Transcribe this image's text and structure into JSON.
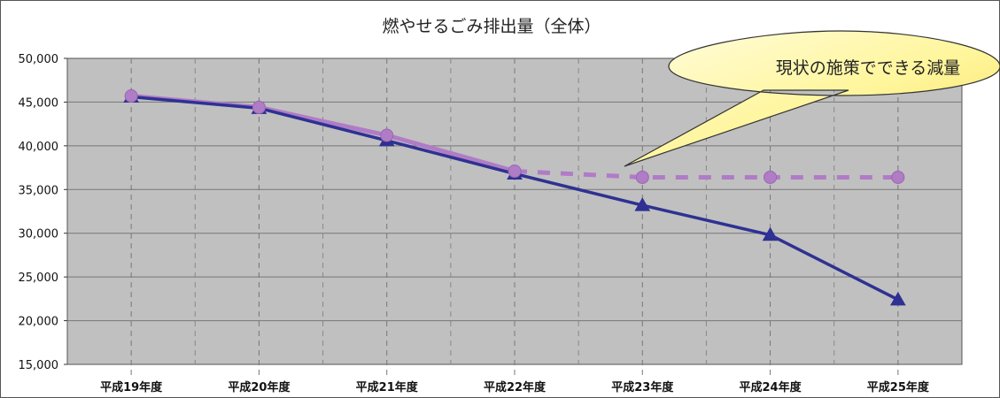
{
  "chart_data": {
    "type": "line",
    "title": "燃やせるごみ排出量（全体）",
    "categories": [
      "平成19年度",
      "平成20年度",
      "平成21年度",
      "平成22年度",
      "平成23年度",
      "平成24年度",
      "平成25年度"
    ],
    "y_tick_labels": [
      "15,000",
      "20,000",
      "25,000",
      "30,000",
      "35,000",
      "40,000",
      "45,000",
      "50,000"
    ],
    "ylim": [
      15000,
      50000
    ],
    "grid": true,
    "series": [
      {
        "marker": "triangle",
        "color": "#2E3192",
        "line_style": "solid",
        "values": [
          45600,
          44300,
          40600,
          36800,
          33200,
          29800,
          22400
        ]
      },
      {
        "marker": "circle",
        "color": "#B07CC6",
        "line_style": "solid-then-dashed",
        "values": [
          45700,
          44400,
          41200,
          37100,
          36400,
          36400,
          36400
        ]
      }
    ],
    "annotations": [
      {
        "text": "現状の施策でできる減量",
        "style": "callout",
        "points_to": "平成22年度"
      }
    ],
    "colors": {
      "plot_background": "#C0C0C0",
      "callout_fill": "#FFF59A"
    }
  }
}
